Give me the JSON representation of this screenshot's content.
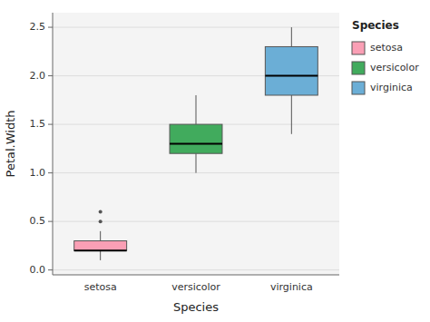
{
  "chart_data": {
    "type": "box",
    "xlabel": "Species",
    "ylabel": "Petal.Width",
    "categories": [
      "setosa",
      "versicolor",
      "virginica"
    ],
    "colors": [
      "#FA9FB5",
      "#41AB5D",
      "#6BAED6"
    ],
    "values": [
      {
        "whisker_low": 0.1,
        "q1": 0.2,
        "median": 0.2,
        "q3": 0.3,
        "whisker_high": 0.4,
        "outliers": [
          0.5,
          0.6
        ]
      },
      {
        "whisker_low": 1.0,
        "q1": 1.2,
        "median": 1.3,
        "q3": 1.5,
        "whisker_high": 1.8,
        "outliers": []
      },
      {
        "whisker_low": 1.4,
        "q1": 1.8,
        "median": 2.0,
        "q3": 2.3,
        "whisker_high": 2.5,
        "outliers": []
      }
    ],
    "ylim": [
      -0.05,
      2.65
    ],
    "yticks": [
      {
        "value": 0.0,
        "label": "0.0"
      },
      0.5,
      {
        "value": 1.0,
        "label": "1.0"
      },
      1.5,
      {
        "value": 2.0,
        "label": "2.0"
      },
      2.5
    ],
    "grid": true,
    "legend": "right",
    "legend_title": "Species"
  }
}
